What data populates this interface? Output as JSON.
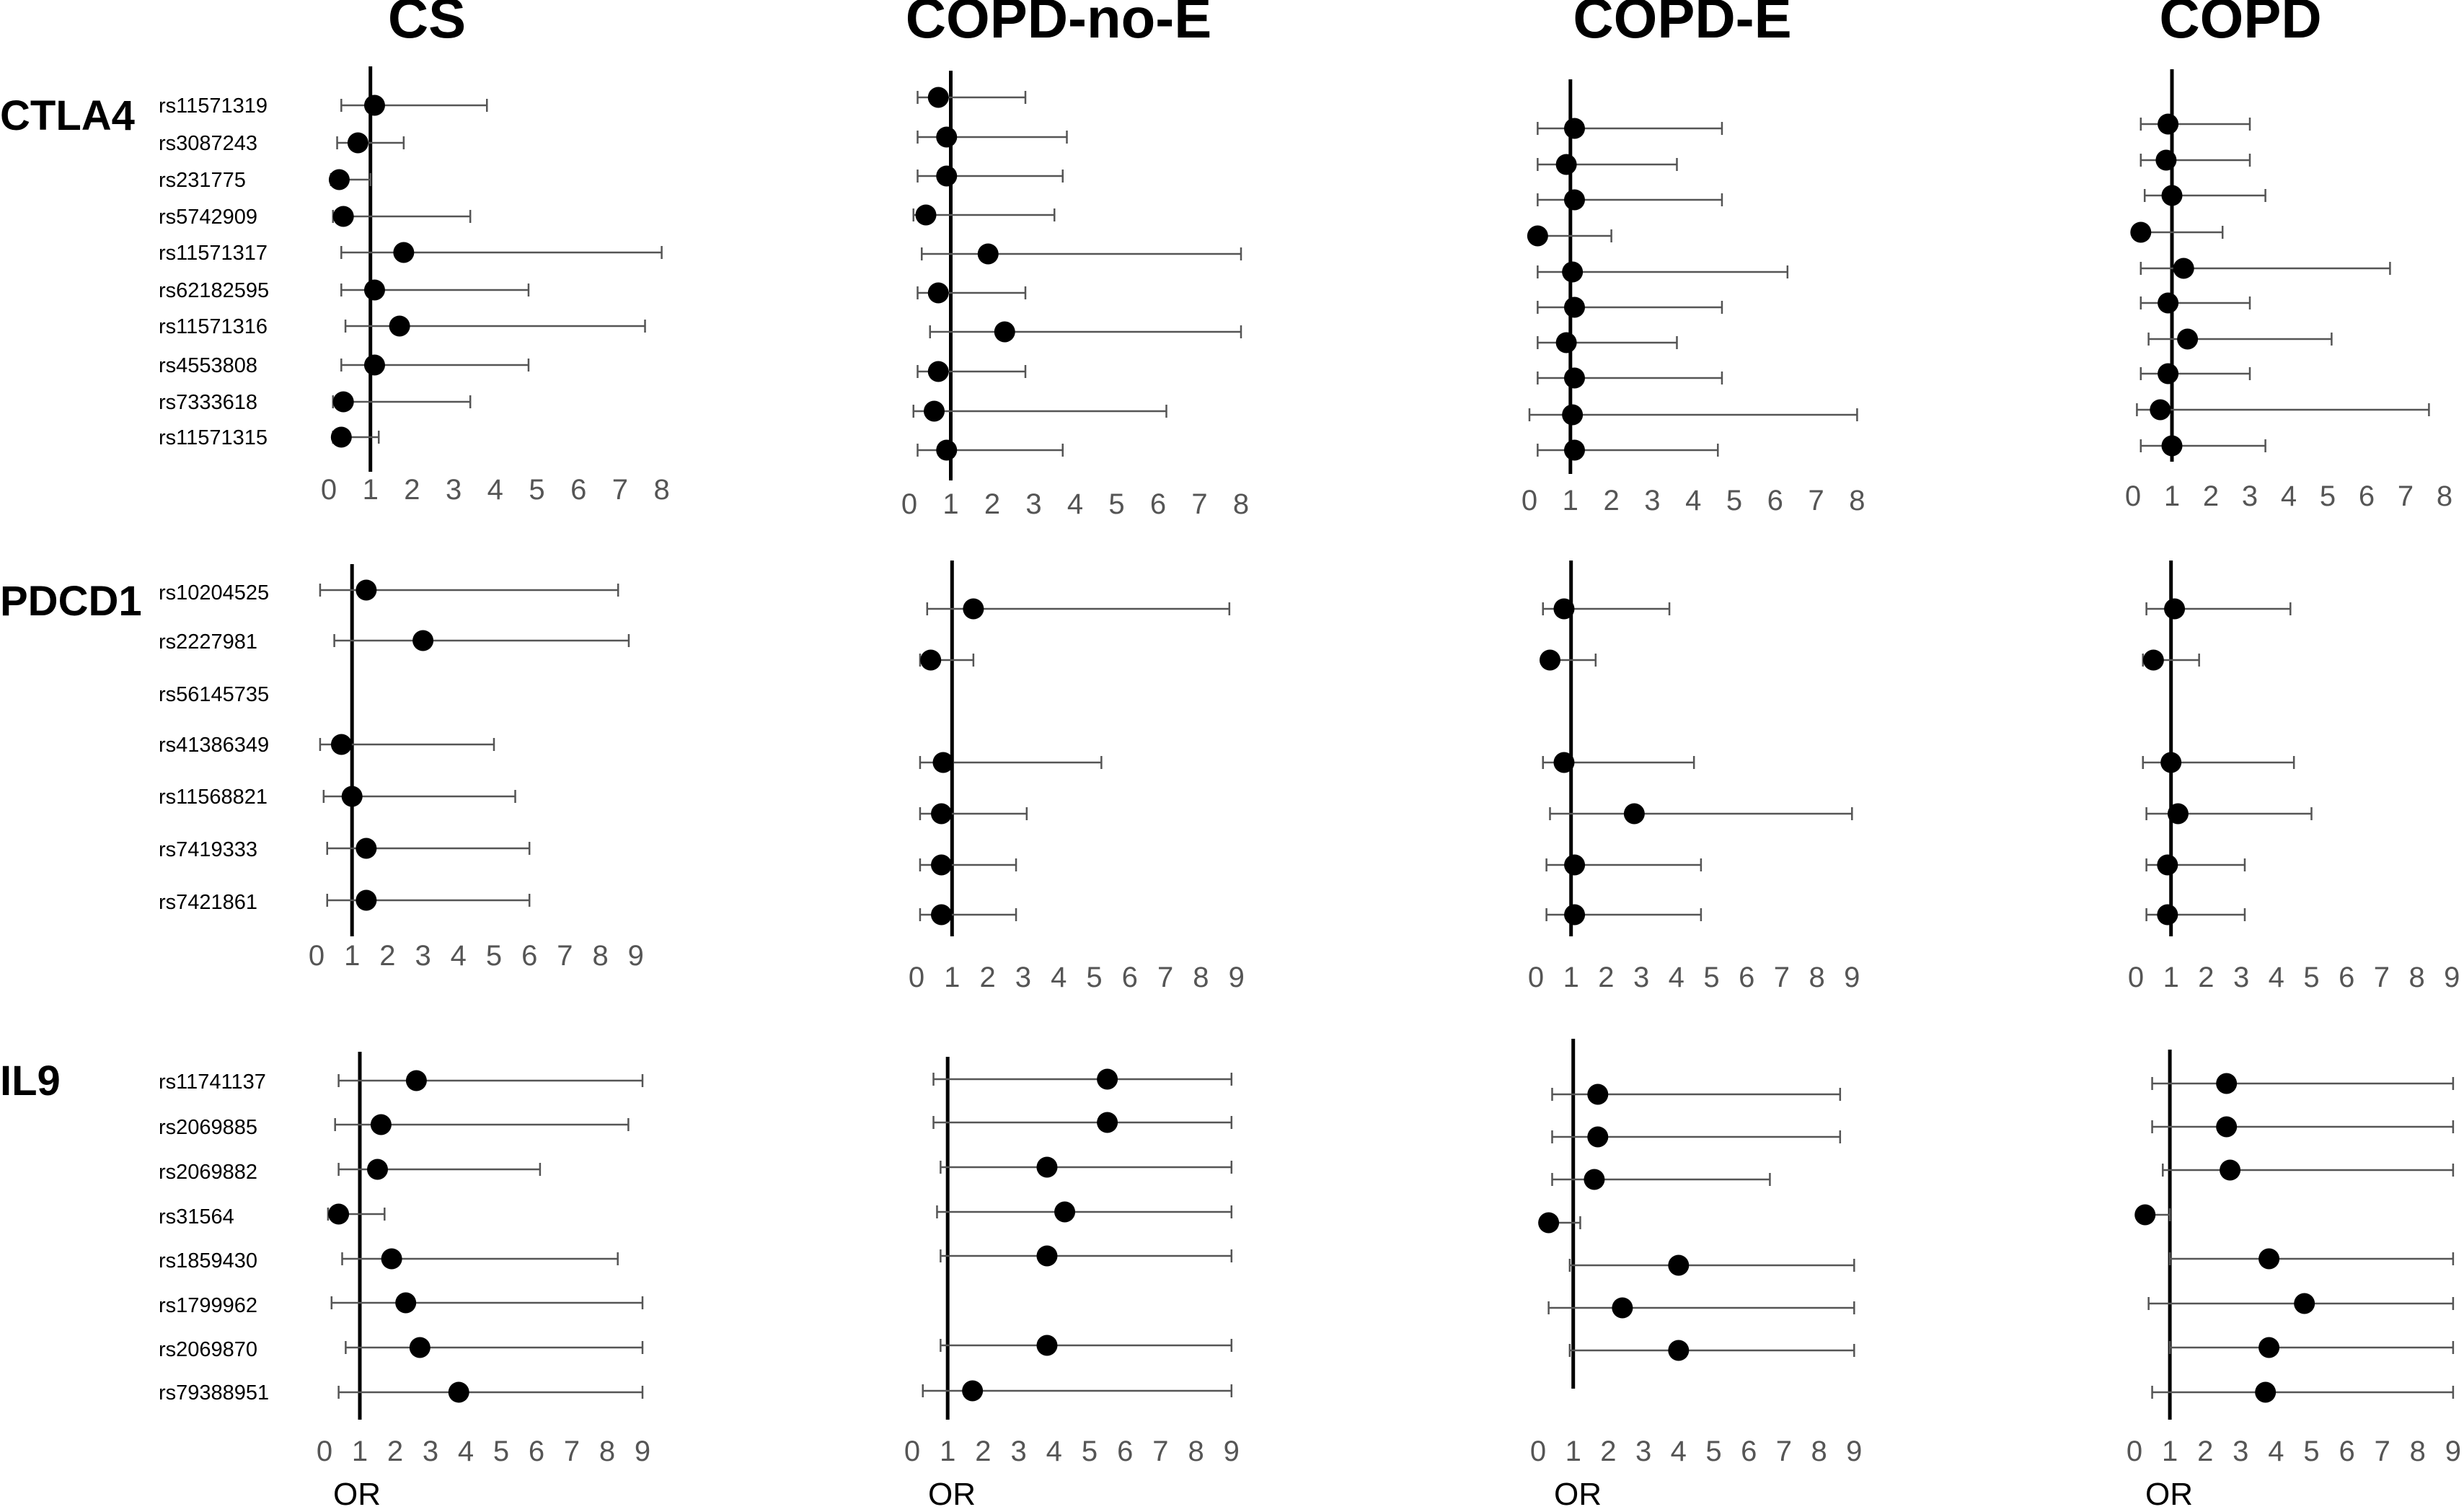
{
  "columns": [
    "CS",
    "COPD-no-E",
    "COPD-E",
    "COPD"
  ],
  "x_axis_label": "OR",
  "chart_data": {
    "type": "scatter",
    "subtype": "forest-plot",
    "x_measure": "OR",
    "reference_line": 1,
    "genes": [
      {
        "name": "CTLA4",
        "snps": [
          "rs11571319",
          "rs3087243",
          "rs231775",
          "rs5742909",
          "rs11571317",
          "rs62182595",
          "rs11571316",
          "rs4553808",
          "rs7333618",
          "rs11571315"
        ],
        "xlim": [
          0,
          8
        ],
        "xticks": [
          "0",
          "1",
          "2",
          "3",
          "4",
          "5",
          "6",
          "7",
          "8"
        ],
        "panels": [
          {
            "column": "CS",
            "estimates": [
              {
                "snp": "rs11571319",
                "or": 1.1,
                "lo": 0.3,
                "hi": 3.8
              },
              {
                "snp": "rs3087243",
                "or": 0.7,
                "lo": 0.2,
                "hi": 1.8
              },
              {
                "snp": "rs231775",
                "or": 0.25,
                "lo": 0.05,
                "hi": 1.0
              },
              {
                "snp": "rs5742909",
                "or": 0.35,
                "lo": 0.1,
                "hi": 3.4
              },
              {
                "snp": "rs11571317",
                "or": 1.8,
                "lo": 0.3,
                "hi": 8.0
              },
              {
                "snp": "rs62182595",
                "or": 1.1,
                "lo": 0.3,
                "hi": 4.8
              },
              {
                "snp": "rs11571316",
                "or": 1.7,
                "lo": 0.4,
                "hi": 7.6
              },
              {
                "snp": "rs4553808",
                "or": 1.1,
                "lo": 0.3,
                "hi": 4.8
              },
              {
                "snp": "rs7333618",
                "or": 0.35,
                "lo": 0.1,
                "hi": 3.4
              },
              {
                "snp": "rs11571315",
                "or": 0.3,
                "lo": 0.1,
                "hi": 1.2
              }
            ]
          },
          {
            "column": "COPD-no-E",
            "estimates": [
              {
                "snp": "rs11571319",
                "or": 0.7,
                "lo": 0.2,
                "hi": 2.8
              },
              {
                "snp": "rs3087243",
                "or": 0.9,
                "lo": 0.2,
                "hi": 3.8
              },
              {
                "snp": "rs231775",
                "or": 0.9,
                "lo": 0.2,
                "hi": 3.7
              },
              {
                "snp": "rs5742909",
                "or": 0.4,
                "lo": 0.1,
                "hi": 3.5
              },
              {
                "snp": "rs11571317",
                "or": 1.9,
                "lo": 0.3,
                "hi": 8.0
              },
              {
                "snp": "rs62182595",
                "or": 0.7,
                "lo": 0.2,
                "hi": 2.8
              },
              {
                "snp": "rs11571316",
                "or": 2.3,
                "lo": 0.5,
                "hi": 8.0
              },
              {
                "snp": "rs4553808",
                "or": 0.7,
                "lo": 0.2,
                "hi": 2.8
              },
              {
                "snp": "rs7333618",
                "or": 0.6,
                "lo": 0.1,
                "hi": 6.2
              },
              {
                "snp": "rs11571315",
                "or": 0.9,
                "lo": 0.2,
                "hi": 3.7
              }
            ]
          },
          {
            "column": "COPD-E",
            "estimates": [
              {
                "snp": "rs11571319",
                "or": 1.1,
                "lo": 0.2,
                "hi": 4.7
              },
              {
                "snp": "rs3087243",
                "or": 0.9,
                "lo": 0.2,
                "hi": 3.6
              },
              {
                "snp": "rs231775",
                "or": 1.1,
                "lo": 0.2,
                "hi": 4.7
              },
              {
                "snp": "rs5742909",
                "or": 0.2,
                "lo": 0.1,
                "hi": 2.0
              },
              {
                "snp": "rs11571317",
                "or": 1.05,
                "lo": 0.2,
                "hi": 6.3
              },
              {
                "snp": "rs62182595",
                "or": 1.1,
                "lo": 0.2,
                "hi": 4.7
              },
              {
                "snp": "rs11571316",
                "or": 0.9,
                "lo": 0.2,
                "hi": 3.6
              },
              {
                "snp": "rs4553808",
                "or": 1.1,
                "lo": 0.2,
                "hi": 4.7
              },
              {
                "snp": "rs7333618",
                "or": 1.05,
                "lo": 0.0,
                "hi": 8.0
              },
              {
                "snp": "rs11571315",
                "or": 1.1,
                "lo": 0.2,
                "hi": 4.6
              }
            ]
          },
          {
            "column": "COPD",
            "estimates": [
              {
                "snp": "rs11571319",
                "or": 0.9,
                "lo": 0.2,
                "hi": 3.0
              },
              {
                "snp": "rs3087243",
                "or": 0.85,
                "lo": 0.2,
                "hi": 3.0
              },
              {
                "snp": "rs231775",
                "or": 1.0,
                "lo": 0.3,
                "hi": 3.4
              },
              {
                "snp": "rs5742909",
                "or": 0.2,
                "lo": 0.1,
                "hi": 2.3
              },
              {
                "snp": "rs11571317",
                "or": 1.3,
                "lo": 0.2,
                "hi": 6.6
              },
              {
                "snp": "rs62182595",
                "or": 0.9,
                "lo": 0.2,
                "hi": 3.0
              },
              {
                "snp": "rs11571316",
                "or": 1.4,
                "lo": 0.4,
                "hi": 5.1
              },
              {
                "snp": "rs4553808",
                "or": 0.9,
                "lo": 0.2,
                "hi": 3.0
              },
              {
                "snp": "rs7333618",
                "or": 0.7,
                "lo": 0.1,
                "hi": 7.6
              },
              {
                "snp": "rs11571315",
                "or": 1.0,
                "lo": 0.2,
                "hi": 3.4
              }
            ]
          }
        ]
      },
      {
        "name": "PDCD1",
        "snps": [
          "rs10204525",
          "rs2227981",
          "rs56145735",
          "rs41386349",
          "rs11568821",
          "rs7419333",
          "rs7421861"
        ],
        "xlim": [
          0,
          9
        ],
        "xticks": [
          "0",
          "1",
          "2",
          "3",
          "4",
          "5",
          "6",
          "7",
          "8",
          "9"
        ],
        "panels": [
          {
            "column": "CS",
            "estimates": [
              {
                "snp": "rs10204525",
                "or": 1.4,
                "lo": 0.1,
                "hi": 8.5
              },
              {
                "snp": "rs2227981",
                "or": 3.0,
                "lo": 0.5,
                "hi": 8.8
              },
              {
                "snp": "rs41386349",
                "or": 0.7,
                "lo": 0.1,
                "hi": 5.0
              },
              {
                "snp": "rs11568821",
                "or": 1.0,
                "lo": 0.2,
                "hi": 5.6
              },
              {
                "snp": "rs7419333",
                "or": 1.4,
                "lo": 0.3,
                "hi": 6.0
              },
              {
                "snp": "rs7421861",
                "or": 1.4,
                "lo": 0.3,
                "hi": 6.0
              }
            ]
          },
          {
            "column": "COPD-no-E",
            "estimates": [
              {
                "snp": "rs10204525",
                "or": 1.6,
                "lo": 0.3,
                "hi": 8.8
              },
              {
                "snp": "rs2227981",
                "or": 0.4,
                "lo": 0.1,
                "hi": 1.6
              },
              {
                "snp": "rs41386349",
                "or": 0.75,
                "lo": 0.1,
                "hi": 5.2
              },
              {
                "snp": "rs11568821",
                "or": 0.7,
                "lo": 0.1,
                "hi": 3.1
              },
              {
                "snp": "rs7419333",
                "or": 0.7,
                "lo": 0.1,
                "hi": 2.8
              },
              {
                "snp": "rs7421861",
                "or": 0.7,
                "lo": 0.1,
                "hi": 2.8
              }
            ]
          },
          {
            "column": "COPD-E",
            "estimates": [
              {
                "snp": "rs10204525",
                "or": 0.8,
                "lo": 0.2,
                "hi": 3.8
              },
              {
                "snp": "rs2227981",
                "or": 0.4,
                "lo": 0.2,
                "hi": 1.7
              },
              {
                "snp": "rs41386349",
                "or": 0.8,
                "lo": 0.2,
                "hi": 4.5
              },
              {
                "snp": "rs11568821",
                "or": 2.8,
                "lo": 0.4,
                "hi": 9.0
              },
              {
                "snp": "rs7419333",
                "or": 1.1,
                "lo": 0.3,
                "hi": 4.7
              },
              {
                "snp": "rs7421861",
                "or": 1.1,
                "lo": 0.3,
                "hi": 4.7
              }
            ]
          },
          {
            "column": "COPD",
            "estimates": [
              {
                "snp": "rs10204525",
                "or": 1.1,
                "lo": 0.3,
                "hi": 4.4
              },
              {
                "snp": "rs2227981",
                "or": 0.5,
                "lo": 0.2,
                "hi": 1.8
              },
              {
                "snp": "rs41386349",
                "or": 1.0,
                "lo": 0.2,
                "hi": 4.5
              },
              {
                "snp": "rs11568821",
                "or": 1.2,
                "lo": 0.3,
                "hi": 5.0
              },
              {
                "snp": "rs7419333",
                "or": 0.9,
                "lo": 0.3,
                "hi": 3.1
              },
              {
                "snp": "rs7421861",
                "or": 0.9,
                "lo": 0.3,
                "hi": 3.1
              }
            ]
          }
        ]
      },
      {
        "name": "IL9",
        "snps": [
          "rs11741137",
          "rs2069885",
          "rs2069882",
          "rs31564",
          "rs1859430",
          "rs1799962",
          "rs2069870",
          "rs79388951"
        ],
        "xlim": [
          0,
          9
        ],
        "xticks": [
          "0",
          "1",
          "2",
          "3",
          "4",
          "5",
          "6",
          "7",
          "8",
          "9"
        ],
        "panels": [
          {
            "column": "CS",
            "estimates": [
              {
                "snp": "rs11741137",
                "or": 2.6,
                "lo": 0.4,
                "hi": 9.0
              },
              {
                "snp": "rs2069885",
                "or": 1.6,
                "lo": 0.3,
                "hi": 8.6
              },
              {
                "snp": "rs2069882",
                "or": 1.5,
                "lo": 0.4,
                "hi": 6.1
              },
              {
                "snp": "rs31564",
                "or": 0.4,
                "lo": 0.1,
                "hi": 1.7
              },
              {
                "snp": "rs1859430",
                "or": 1.9,
                "lo": 0.5,
                "hi": 8.3
              },
              {
                "snp": "rs1799962",
                "or": 2.3,
                "lo": 0.2,
                "hi": 9.0
              },
              {
                "snp": "rs2069870",
                "or": 2.7,
                "lo": 0.6,
                "hi": 9.0
              },
              {
                "snp": "rs79388951",
                "or": 3.8,
                "lo": 0.4,
                "hi": 9.0
              }
            ]
          },
          {
            "column": "COPD-no-E",
            "estimates": [
              {
                "snp": "rs11741137",
                "or": 5.5,
                "lo": 0.6,
                "hi": 9.0
              },
              {
                "snp": "rs2069885",
                "or": 5.5,
                "lo": 0.6,
                "hi": 9.0
              },
              {
                "snp": "rs2069882",
                "or": 3.8,
                "lo": 0.8,
                "hi": 9.0
              },
              {
                "snp": "rs31564",
                "or": 4.3,
                "lo": 0.7,
                "hi": 9.0
              },
              {
                "snp": "rs1859430",
                "or": 3.8,
                "lo": 0.8,
                "hi": 9.0
              },
              {
                "snp": "rs2069870",
                "or": 3.8,
                "lo": 0.8,
                "hi": 9.0
              },
              {
                "snp": "rs79388951",
                "or": 1.7,
                "lo": 0.3,
                "hi": 9.0
              }
            ]
          },
          {
            "column": "COPD-E",
            "estimates": [
              {
                "snp": "rs11741137",
                "or": 1.7,
                "lo": 0.4,
                "hi": 8.6
              },
              {
                "snp": "rs2069885",
                "or": 1.7,
                "lo": 0.4,
                "hi": 8.6
              },
              {
                "snp": "rs2069882",
                "or": 1.6,
                "lo": 0.4,
                "hi": 6.6
              },
              {
                "snp": "rs31564",
                "or": 0.3,
                "lo": 0.1,
                "hi": 1.2
              },
              {
                "snp": "rs1859430",
                "or": 4.0,
                "lo": 0.9,
                "hi": 9.0
              },
              {
                "snp": "rs1799962",
                "or": 2.4,
                "lo": 0.3,
                "hi": 9.0
              },
              {
                "snp": "rs2069870",
                "or": 4.0,
                "lo": 0.9,
                "hi": 9.0
              }
            ]
          },
          {
            "column": "COPD",
            "estimates": [
              {
                "snp": "rs11741137",
                "or": 2.6,
                "lo": 0.5,
                "hi": 9.0
              },
              {
                "snp": "rs2069885",
                "or": 2.6,
                "lo": 0.5,
                "hi": 9.0
              },
              {
                "snp": "rs2069882",
                "or": 2.7,
                "lo": 0.8,
                "hi": 9.0
              },
              {
                "snp": "rs31564",
                "or": 0.3,
                "lo": 0.1,
                "hi": 1.0
              },
              {
                "snp": "rs1859430",
                "or": 3.8,
                "lo": 1.0,
                "hi": 9.0
              },
              {
                "snp": "rs1799962",
                "or": 4.8,
                "lo": 0.4,
                "hi": 9.0
              },
              {
                "snp": "rs2069870",
                "or": 3.8,
                "lo": 1.0,
                "hi": 9.0
              },
              {
                "snp": "rs79388951",
                "or": 3.7,
                "lo": 0.5,
                "hi": 9.0
              }
            ]
          }
        ]
      }
    ]
  }
}
